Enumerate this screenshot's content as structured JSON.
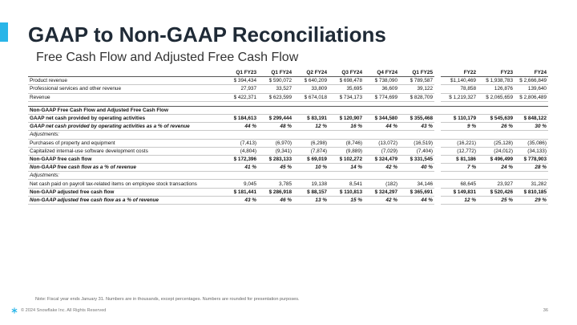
{
  "header": {
    "title": "GAAP to Non-GAAP Reconciliations",
    "subtitle": "Free Cash Flow and Adjusted Free Cash Flow"
  },
  "table": {
    "columns": [
      "Q1 FY23",
      "Q1 FY24",
      "Q2 FY24",
      "Q3 FY24",
      "Q4 FY24",
      "Q1 FY25",
      "FY22",
      "FY23",
      "FY24"
    ],
    "rows": [
      {
        "label": "Product revenue",
        "style": "plain",
        "cells": [
          "$ 394,434",
          "$ 590,072",
          "$ 640,209",
          "$ 698,478",
          "$ 738,090",
          "$ 789,587",
          "$1,140,469",
          "$ 1,938,783",
          "$ 2,666,849"
        ]
      },
      {
        "label": "Professional services and other revenue",
        "style": "plain",
        "cells": [
          "27,937",
          "33,527",
          "33,809",
          "35,695",
          "36,609",
          "39,122",
          "78,858",
          "126,876",
          "139,640"
        ]
      },
      {
        "label": "Revenue",
        "style": "plain",
        "cells": [
          "$ 422,371",
          "$ 623,599",
          "$ 674,018",
          "$ 734,173",
          "$ 774,699",
          "$ 828,709",
          "$ 1,219,327",
          "$ 2,065,659",
          "$ 2,806,489"
        ]
      },
      {
        "label": "Non-GAAP Free Cash Flow and Adjusted Free Cash Flow",
        "style": "section",
        "cells": []
      },
      {
        "label": "GAAP net cash provided by operating activities",
        "style": "bold",
        "cells": [
          "$ 184,613",
          "$ 299,444",
          "$ 83,191",
          "$ 120,907",
          "$ 344,580",
          "$ 355,468",
          "$ 110,179",
          "$ 545,639",
          "$ 848,122"
        ]
      },
      {
        "label": "GAAP net cash provided by operating activities as a % of revenue",
        "style": "bold-italic",
        "cells": [
          "44 %",
          "48 %",
          "12 %",
          "16 %",
          "44 %",
          "43 %",
          "9 %",
          "26 %",
          "30 %"
        ]
      },
      {
        "label": "Adjustments:",
        "style": "italic",
        "cells": []
      },
      {
        "label": "Purchases of property and equipment",
        "style": "plain",
        "cells": [
          "(7,413)",
          "(6,970)",
          "(6,298)",
          "(8,746)",
          "(13,072)",
          "(16,519)",
          "(16,221)",
          "(25,128)",
          "(35,086)"
        ]
      },
      {
        "label": "Capitalized internal-use software development costs",
        "style": "plain",
        "cells": [
          "(4,804)",
          "(9,341)",
          "(7,874)",
          "(9,889)",
          "(7,029)",
          "(7,404)",
          "(12,772)",
          "(24,012)",
          "(34,133)"
        ]
      },
      {
        "label": "Non-GAAP free cash flow",
        "style": "bold",
        "cells": [
          "$ 172,396",
          "$ 283,133",
          "$ 69,019",
          "$ 102,272",
          "$ 324,479",
          "$ 331,545",
          "$ 81,186",
          "$ 496,499",
          "$ 778,903"
        ]
      },
      {
        "label": "Non-GAAP free cash flow as a % of revenue",
        "style": "bold-italic",
        "cells": [
          "41 %",
          "45 %",
          "10 %",
          "14 %",
          "42 %",
          "40 %",
          "7 %",
          "24 %",
          "28 %"
        ]
      },
      {
        "label": "Adjustments:",
        "style": "italic",
        "cells": []
      },
      {
        "label": "Net cash paid on payroll tax-related items on employee stock transactions",
        "style": "plain",
        "cells": [
          "9,045",
          "3,785",
          "19,138",
          "8,541",
          "(182)",
          "34,146",
          "68,645",
          "23,927",
          "31,282"
        ]
      },
      {
        "label": "Non-GAAP adjusted free cash flow",
        "style": "bold",
        "cells": [
          "$ 181,441",
          "$ 286,918",
          "$ 88,157",
          "$ 110,813",
          "$ 324,297",
          "$ 365,691",
          "$ 149,831",
          "$ 520,426",
          "$ 810,185"
        ]
      },
      {
        "label": "Non-GAAP adjusted free cash flow as a % of revenue",
        "style": "bold-italic",
        "cells": [
          "43 %",
          "46 %",
          "13 %",
          "15 %",
          "42 %",
          "44 %",
          "12 %",
          "25 %",
          "29 %"
        ]
      }
    ]
  },
  "footer": {
    "note": "Note: Fiscal year ends January 31. Numbers are in thousands, except percentages. Numbers are rounded for presentation purposes.",
    "copyright": "© 2024 Snowflake Inc. All Rights Reserved",
    "page": "36"
  }
}
